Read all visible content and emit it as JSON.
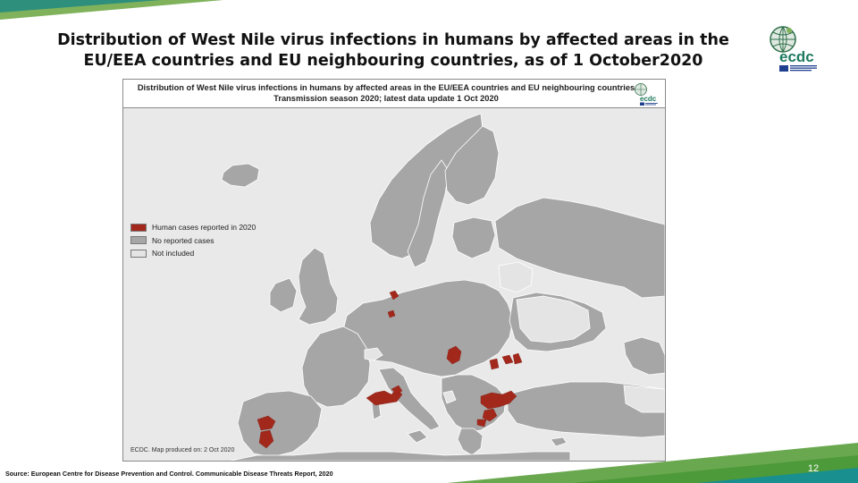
{
  "slide": {
    "title_line1": "Distribution of West Nile virus infections in humans by affected areas in the",
    "title_line2": "EU/EEA countries and EU neighbouring countries, as of 1 October2020",
    "source": "Source: European Centre for Disease Prevention and Control. Communicable Disease Threats Report, 2020",
    "page_number": "12"
  },
  "map": {
    "title": "Distribution of West Nile virus infections in humans by affected areas in the EU/EEA countries and EU neighbouring countries",
    "subtitle": "Transmission season 2020; latest data update 1 Oct 2020",
    "credit": "ECDC. Map produced on: 2 Oct 2020",
    "legend": [
      {
        "label": "Human cases reported in 2020",
        "color": "#a3281c"
      },
      {
        "label": "No reported cases",
        "color": "#a6a6a6"
      },
      {
        "label": "Not included",
        "color": "#e4e4e4"
      }
    ],
    "affected_areas": [
      "Germany",
      "Netherlands",
      "Italy",
      "Spain",
      "Greece",
      "Hungary",
      "Romania",
      "Bulgaria",
      "Slovakia"
    ]
  },
  "logo": {
    "text": "ecdc",
    "colors": {
      "globe": "#2f6f4a",
      "text": "#1d7a5f",
      "flag": "#1f3f8f"
    }
  },
  "colors": {
    "affected": "#a3281c",
    "no_cases": "#a6a6a6",
    "not_included": "#e4e4e4",
    "sea": "#e9e9e9",
    "accent_green": "#6aa84f",
    "accent_teal": "#1a8f8f"
  }
}
